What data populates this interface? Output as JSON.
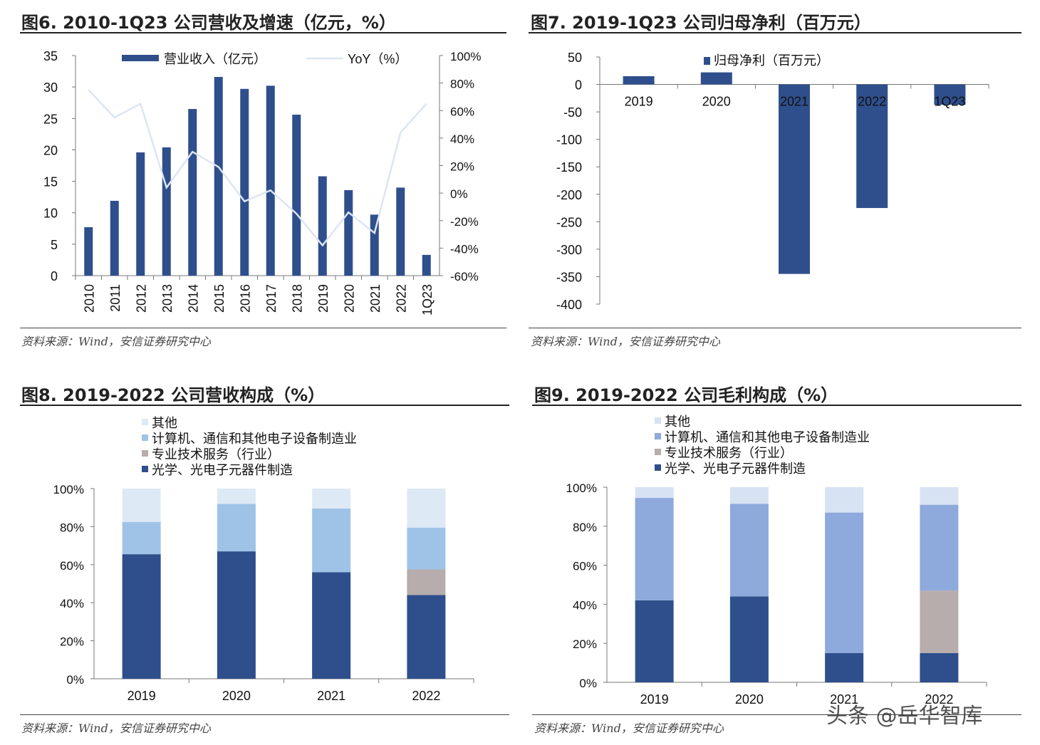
{
  "source": "资料来源：Wind，安信证券研究中心",
  "watermark": "头条 @岳华智库",
  "colors": {
    "dark": "#2f4f8c",
    "light_line": "#dce6f2",
    "c3_computer": "#9fc3e7",
    "c3_other": "#dde9f5",
    "gray": "#b7adac",
    "c4_computer": "#8ea9db",
    "c4_other": "#d7e2f3"
  },
  "chart_data": [
    {
      "type": "bar+line",
      "title": "图6. 2010-1Q23 公司营收及增速（亿元，%）",
      "categories": [
        "2010",
        "2011",
        "2012",
        "2013",
        "2014",
        "2015",
        "2016",
        "2017",
        "2018",
        "2019",
        "2020",
        "2021",
        "2022",
        "1Q23"
      ],
      "series": [
        {
          "name": "营业收入（亿元）",
          "type": "bar",
          "axis": "left",
          "values": [
            7.7,
            11.9,
            19.6,
            20.4,
            26.5,
            31.6,
            29.7,
            30.2,
            25.6,
            15.8,
            13.6,
            9.7,
            14.0,
            3.3
          ]
        },
        {
          "name": "YoY（%）",
          "type": "line",
          "axis": "right",
          "values": [
            75,
            55,
            65,
            4,
            30,
            19,
            -6,
            2,
            -15,
            -38,
            -14,
            -29,
            44,
            65
          ]
        }
      ],
      "ylim": [
        0,
        35
      ],
      "yticks": [
        "0",
        "5",
        "10",
        "15",
        "20",
        "25",
        "30",
        "35"
      ],
      "y2lim": [
        -60,
        100
      ],
      "y2ticks": [
        "-60%",
        "-40%",
        "-20%",
        "0%",
        "20%",
        "40%",
        "60%",
        "80%",
        "100%"
      ],
      "legend": "top"
    },
    {
      "type": "bar",
      "title": "图7. 2019-1Q23 公司归母净利（百万元）",
      "categories": [
        "2019",
        "2020",
        "2021",
        "2022",
        "1Q23"
      ],
      "series": [
        {
          "name": "归母净利（百万元）",
          "values": [
            15,
            22,
            -345,
            -225,
            -37
          ]
        }
      ],
      "ylim": [
        -400,
        50
      ],
      "yticks": [
        "-400",
        "-350",
        "-300",
        "-250",
        "-200",
        "-150",
        "-100",
        "-50",
        "0",
        "50"
      ],
      "legend": "top"
    },
    {
      "type": "stacked-bar",
      "title": "图8. 2019-2022 公司营收构成（%）",
      "categories": [
        "2019",
        "2020",
        "2021",
        "2022"
      ],
      "series": [
        {
          "name": "光学、光电子元器件制造",
          "values": [
            65.5,
            67,
            56,
            44
          ]
        },
        {
          "name": "专业技术服务（行业）",
          "values": [
            0,
            0,
            0,
            13.5
          ]
        },
        {
          "name": "计算机、通信和其他电子设备制造业",
          "values": [
            17,
            25,
            33.5,
            22
          ]
        },
        {
          "name": "其他",
          "values": [
            17.5,
            8,
            10.5,
            20.5
          ]
        }
      ],
      "ylim": [
        0,
        100
      ],
      "yticks": [
        "0%",
        "20%",
        "40%",
        "60%",
        "80%",
        "100%"
      ],
      "legend": "top"
    },
    {
      "type": "stacked-bar",
      "title": "图9. 2019-2022 公司毛利构成（%）",
      "categories": [
        "2019",
        "2020",
        "2021",
        "2022"
      ],
      "series": [
        {
          "name": "光学、光电子元器件制造",
          "values": [
            42,
            44,
            15,
            15
          ]
        },
        {
          "name": "专业技术服务（行业）",
          "values": [
            0,
            0,
            0,
            32
          ]
        },
        {
          "name": "计算机、通信和其他电子设备制造业",
          "values": [
            52.5,
            47.5,
            72,
            44
          ]
        },
        {
          "name": "其他",
          "values": [
            5.5,
            8.5,
            13,
            9
          ]
        }
      ],
      "ylim": [
        0,
        100
      ],
      "yticks": [
        "0%",
        "20%",
        "40%",
        "60%",
        "80%",
        "100%"
      ],
      "legend": "top"
    }
  ]
}
